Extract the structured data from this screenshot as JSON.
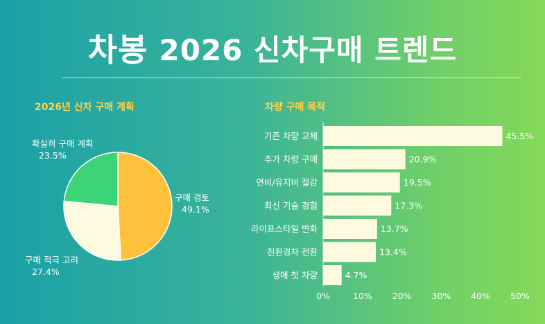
{
  "header": {
    "logo": "차봉",
    "title": "2026 신차구매 트렌드"
  },
  "colors": {
    "pie": [
      "#ffc13b",
      "#fdfae0",
      "#3cd476"
    ],
    "bar": "#fdfae0",
    "accent": "#ffd34a",
    "text": "#ffffff"
  },
  "chart_data": [
    {
      "type": "pie",
      "title": "2026년 신차 구매 계획",
      "slices": [
        {
          "label": "구매 검토",
          "value": 49.1,
          "value_label": "49.1%"
        },
        {
          "label": "구매 적극 고려",
          "value": 27.4,
          "value_label": "27.4%"
        },
        {
          "label": "확실히 구매 계획",
          "value": 23.5,
          "value_label": "23.5%"
        }
      ]
    },
    {
      "type": "bar",
      "orientation": "horizontal",
      "title": "차량 구매 목적",
      "categories": [
        "기존 차량 교체",
        "추가 차량 구매",
        "연비/유지비 절감",
        "최신 기술 경험",
        "라이프스타일 변화",
        "친환경차 전환",
        "생애 첫 차량"
      ],
      "values": [
        45.5,
        20.9,
        19.5,
        17.3,
        13.7,
        13.4,
        4.7
      ],
      "value_labels": [
        "45.5%",
        "20.9%",
        "19.5%",
        "17.3%",
        "13.7%",
        "13.4%",
        "4.7%"
      ],
      "xlim": [
        0,
        50
      ],
      "x_ticks": [
        "0%",
        "10%",
        "20%",
        "30%",
        "40%",
        "50%"
      ]
    }
  ]
}
